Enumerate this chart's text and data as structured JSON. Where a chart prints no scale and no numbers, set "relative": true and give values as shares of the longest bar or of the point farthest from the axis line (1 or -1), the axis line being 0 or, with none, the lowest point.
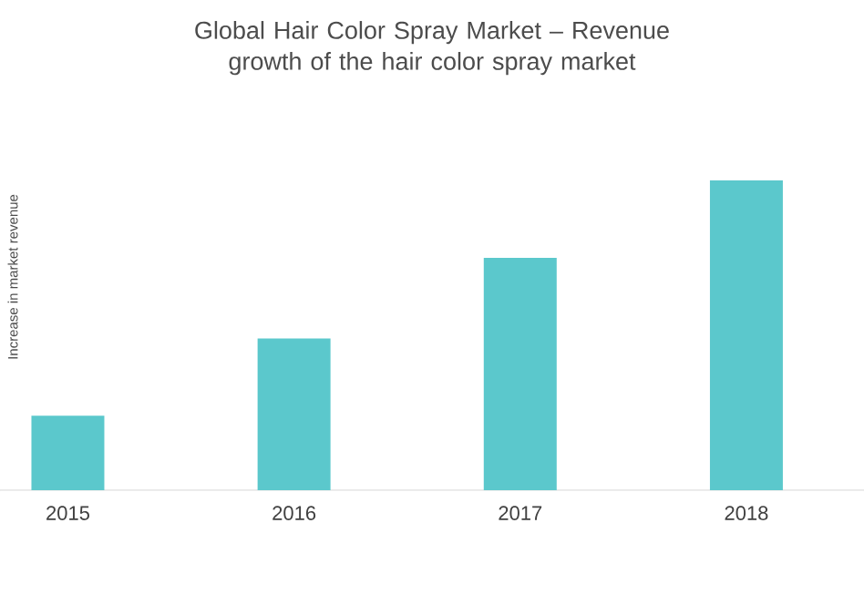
{
  "chart_data": {
    "type": "bar",
    "title": "Global Hair Color Spray Market – Revenue growth of the hair color spray market",
    "ylabel": "Increase in market revenue",
    "categories": [
      "2015",
      "2016",
      "2017",
      "2018"
    ],
    "values": [
      0.24,
      0.49,
      0.75,
      1
    ],
    "color": "#5bc8cc",
    "relative": true
  }
}
